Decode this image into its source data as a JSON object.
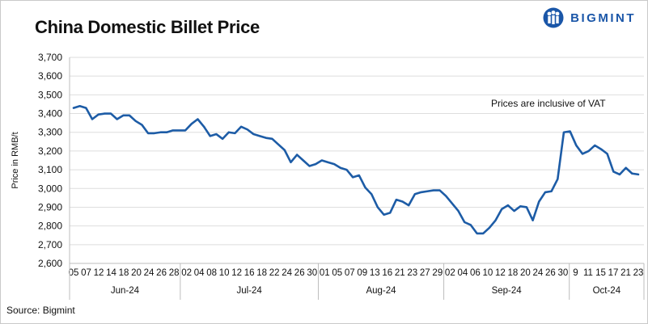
{
  "title": "China Domestic Billet Price",
  "brand": {
    "name": "BIGMINT",
    "accent": "#1a56a8"
  },
  "source": "Source: Bigmint",
  "chart_data": {
    "type": "line",
    "title": "China Domestic Billet Price",
    "xlabel": "",
    "ylabel": "Price in RMB/t",
    "ylim": [
      2600,
      3700
    ],
    "yticks": [
      "2,600",
      "2,700",
      "2,800",
      "2,900",
      "3,000",
      "3,100",
      "3,200",
      "3,300",
      "3,400",
      "3,500",
      "3,600",
      "3,700"
    ],
    "grid": "horizontal",
    "annotation": "Prices are inclusive of VAT",
    "line_color": "#1d5ca6",
    "months": [
      {
        "label": "Jun-24",
        "days": [
          "05",
          "07",
          "12",
          "14",
          "18",
          "20",
          "24",
          "26",
          "28"
        ]
      },
      {
        "label": "Jul-24",
        "days": [
          "02",
          "04",
          "08",
          "10",
          "12",
          "16",
          "18",
          "22",
          "24",
          "26",
          "30"
        ]
      },
      {
        "label": "Aug-24",
        "days": [
          "01",
          "05",
          "07",
          "09",
          "13",
          "16",
          "21",
          "23",
          "27",
          "29"
        ]
      },
      {
        "label": "Sep-24",
        "days": [
          "02",
          "04",
          "06",
          "10",
          "12",
          "18",
          "20",
          "24",
          "26",
          "30"
        ]
      },
      {
        "label": "Oct-24",
        "days": [
          "9",
          "11",
          "15",
          "17",
          "21",
          "23"
        ]
      }
    ],
    "series": [
      {
        "values": [
          3430,
          3440,
          3430,
          3370,
          3395,
          3400,
          3400,
          3370,
          3390,
          3390,
          3360,
          3340,
          3295,
          3295,
          3300,
          3300,
          3310,
          3310,
          3310,
          3345,
          3370,
          3330,
          3280,
          3290,
          3265,
          3300,
          3295,
          3330,
          3315,
          3290,
          3280,
          3270,
          3265,
          3235,
          3205,
          3140,
          3180,
          3150,
          3120,
          3130,
          3150,
          3140,
          3130,
          3110,
          3100,
          3060,
          3070,
          3005,
          2970,
          2900,
          2860,
          2870,
          2940,
          2930,
          2910,
          2970,
          2980,
          2985,
          2990,
          2990,
          2960,
          2920,
          2880,
          2820,
          2805,
          2760,
          2760,
          2790,
          2830,
          2890,
          2910,
          2880,
          2905,
          2900,
          2830,
          2930,
          2980,
          2985,
          3050,
          3300,
          3305,
          3230,
          3185,
          3200,
          3230,
          3210,
          3185,
          3090,
          3075,
          3110,
          3080,
          3075
        ]
      }
    ]
  }
}
